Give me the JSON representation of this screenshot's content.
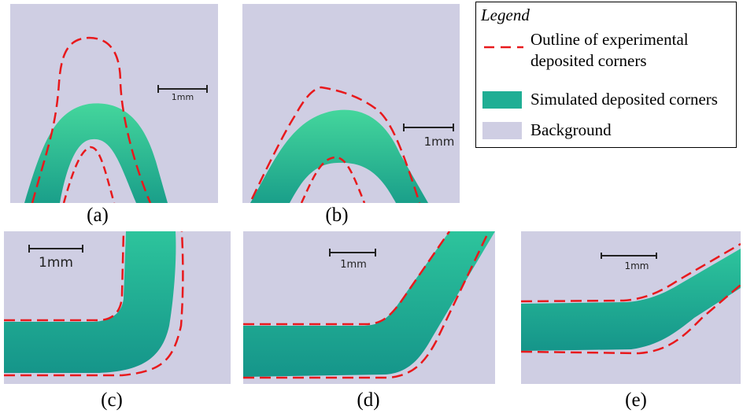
{
  "panels": [
    {
      "id": "a",
      "caption": "(a)",
      "scale_label": "1mm"
    },
    {
      "id": "b",
      "caption": "(b)",
      "scale_label": "1mm"
    },
    {
      "id": "c",
      "caption": "(c)",
      "scale_label": "1mm"
    },
    {
      "id": "d",
      "caption": "(d)",
      "scale_label": "1mm"
    },
    {
      "id": "e",
      "caption": "(e)",
      "scale_label": "1mm"
    }
  ],
  "legend": {
    "title": "Legend",
    "items": [
      {
        "label_line1": "Outline of experimental",
        "label_line2": "deposited corners",
        "color": "#e8191c",
        "style": "dashed-line"
      },
      {
        "label": "Simulated deposited corners",
        "color": "#1fae94",
        "style": "fill"
      },
      {
        "label": "Background",
        "color": "#cfcee3",
        "style": "fill"
      }
    ]
  },
  "colors": {
    "background": "#cfcee3",
    "simulated": "#1fae94",
    "simulated_highlight": "#3ecf9a",
    "outline": "#e8191c"
  }
}
